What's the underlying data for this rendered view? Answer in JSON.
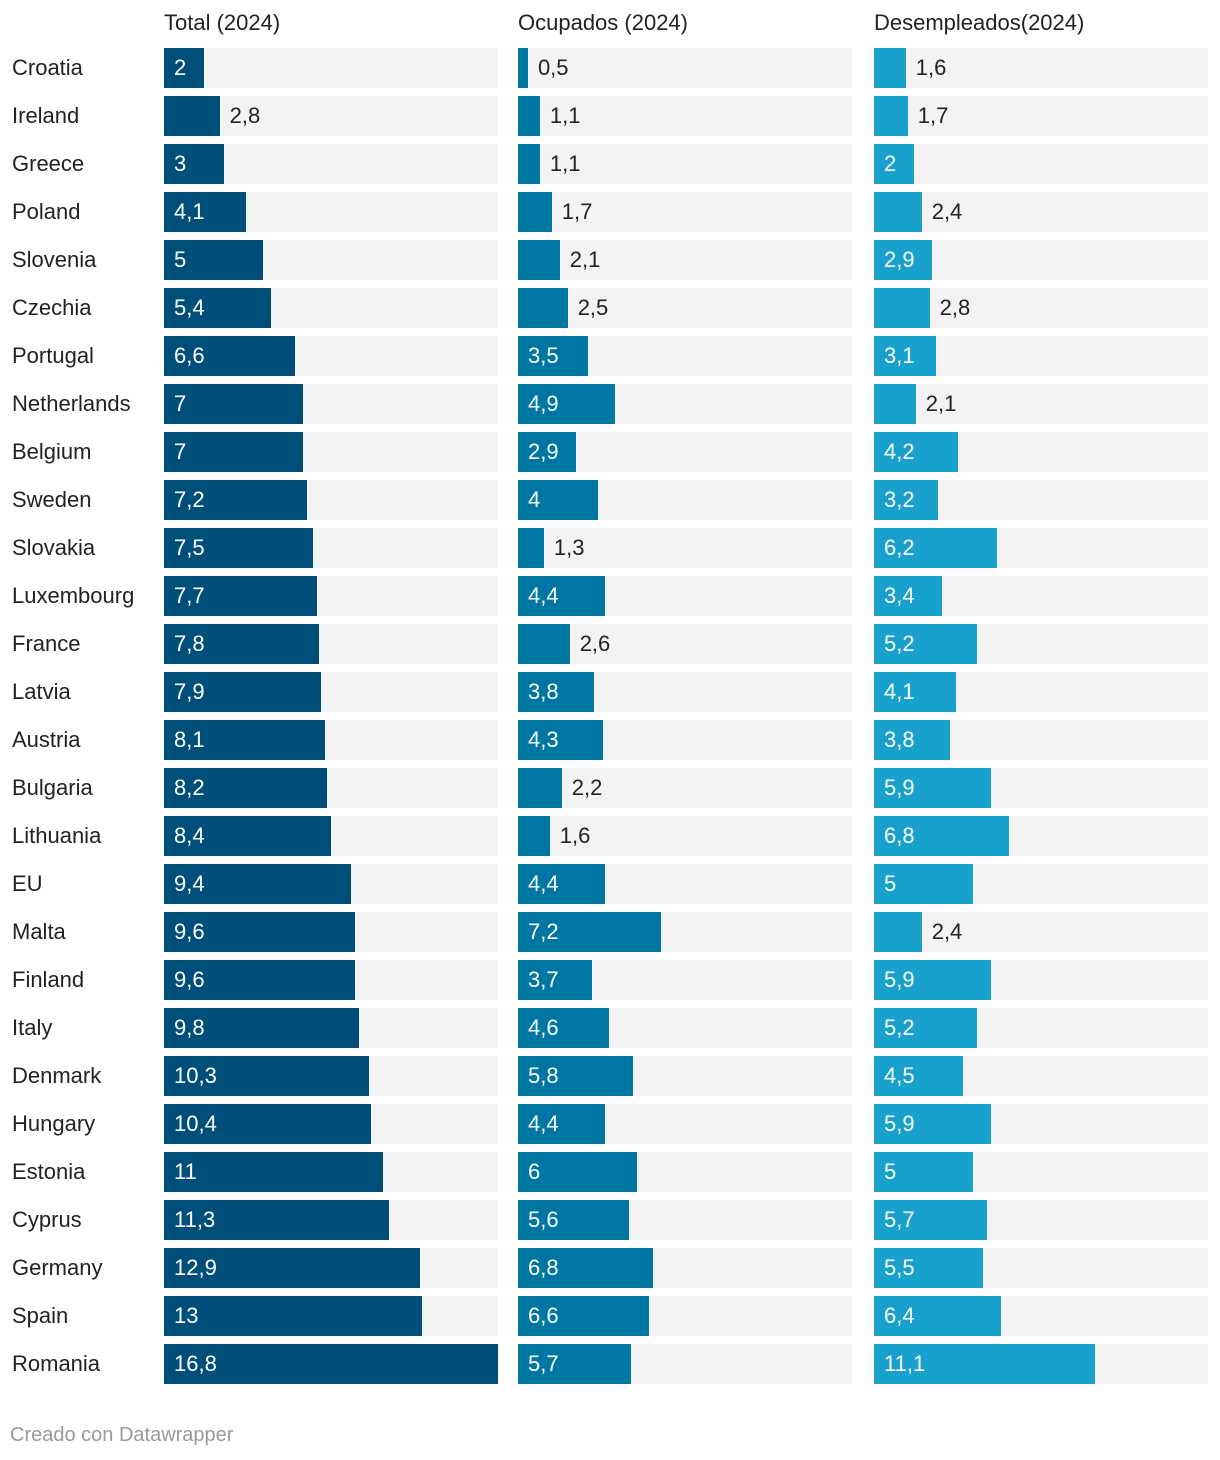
{
  "chart_data": {
    "type": "bar",
    "categories": [
      "Croatia",
      "Ireland",
      "Greece",
      "Poland",
      "Slovenia",
      "Czechia",
      "Portugal",
      "Netherlands",
      "Belgium",
      "Sweden",
      "Slovakia",
      "Luxembourg",
      "France",
      "Latvia",
      "Austria",
      "Bulgaria",
      "Lithuania",
      "EU",
      "Malta",
      "Finland",
      "Italy",
      "Denmark",
      "Hungary",
      "Estonia",
      "Cyprus",
      "Germany",
      "Spain",
      "Romania"
    ],
    "series": [
      {
        "name": "Total (2024)",
        "color": "#004f7a",
        "values": [
          2,
          2.8,
          3,
          4.1,
          5,
          5.4,
          6.6,
          7,
          7,
          7.2,
          7.5,
          7.7,
          7.8,
          7.9,
          8.1,
          8.2,
          8.4,
          9.4,
          9.6,
          9.6,
          9.8,
          10.3,
          10.4,
          11,
          11.3,
          12.9,
          13,
          16.8
        ],
        "labels": [
          "2",
          "2,8",
          "3",
          "4,1",
          "5",
          "5,4",
          "6,6",
          "7",
          "7",
          "7,2",
          "7,5",
          "7,7",
          "7,8",
          "7,9",
          "8,1",
          "8,2",
          "8,4",
          "9,4",
          "9,6",
          "9,6",
          "9,8",
          "10,3",
          "10,4",
          "11",
          "11,3",
          "12,9",
          "13",
          "16,8"
        ]
      },
      {
        "name": "Ocupados (2024)",
        "color": "#0076a3",
        "values": [
          0.5,
          1.1,
          1.1,
          1.7,
          2.1,
          2.5,
          3.5,
          4.9,
          2.9,
          4,
          1.3,
          4.4,
          2.6,
          3.8,
          4.3,
          2.2,
          1.6,
          4.4,
          7.2,
          3.7,
          4.6,
          5.8,
          4.4,
          6,
          5.6,
          6.8,
          6.6,
          5.7
        ],
        "labels": [
          "0,5",
          "1,1",
          "1,1",
          "1,7",
          "2,1",
          "2,5",
          "3,5",
          "4,9",
          "2,9",
          "4",
          "1,3",
          "4,4",
          "2,6",
          "3,8",
          "4,3",
          "2,2",
          "1,6",
          "4,4",
          "7,2",
          "3,7",
          "4,6",
          "5,8",
          "4,4",
          "6",
          "5,6",
          "6,8",
          "6,6",
          "5,7"
        ]
      },
      {
        "name": "Desempleados(2024)",
        "color": "#18a1cd",
        "values": [
          1.6,
          1.7,
          2,
          2.4,
          2.9,
          2.8,
          3.1,
          2.1,
          4.2,
          3.2,
          6.2,
          3.4,
          5.2,
          4.1,
          3.8,
          5.9,
          6.8,
          5,
          2.4,
          5.9,
          5.2,
          4.5,
          5.9,
          5,
          5.7,
          5.5,
          6.4,
          11.1
        ],
        "labels": [
          "1,6",
          "1,7",
          "2",
          "2,4",
          "2,9",
          "2,8",
          "3,1",
          "2,1",
          "4,2",
          "3,2",
          "6,2",
          "3,4",
          "5,2",
          "4,1",
          "3,8",
          "5,9",
          "6,8",
          "5",
          "2,4",
          "5,9",
          "5,2",
          "4,5",
          "5,9",
          "5",
          "5,7",
          "5,5",
          "6,4",
          "11,1"
        ]
      }
    ],
    "xlim": [
      0,
      16.8
    ],
    "grid": false,
    "legend": "none"
  },
  "footer": "Creado con Datawrapper",
  "colors": {
    "track": "#f3f3f3",
    "label_inside": "#ffffff",
    "label_outside": "#222222"
  }
}
